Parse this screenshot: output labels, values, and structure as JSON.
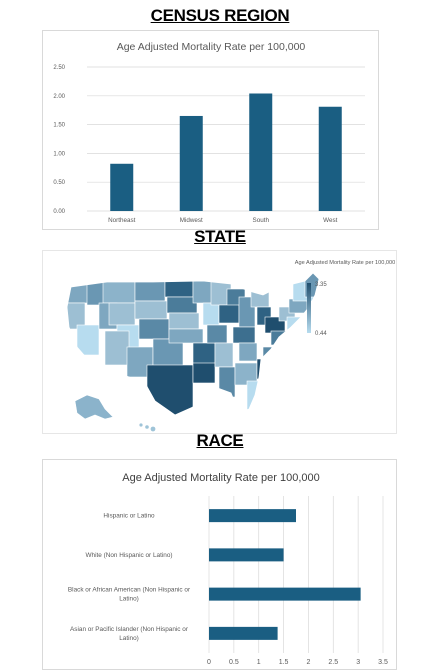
{
  "sections": {
    "census": "CENSUS REGION",
    "state": "STATE",
    "race": "RACE"
  },
  "colors": {
    "bar": "#1a5e82",
    "grid": "#d9d9d9",
    "axis_text": "#595959",
    "map_dark": "#1f4e6e",
    "map_light": "#b7dcef"
  },
  "chart_data": [
    {
      "type": "bar",
      "title": "Age Adjusted Mortality Rate per 100,000",
      "categories": [
        "Northeast",
        "Midwest",
        "South",
        "West"
      ],
      "values": [
        0.82,
        1.65,
        2.04,
        1.81
      ],
      "ylim": [
        0,
        2.5
      ],
      "yticks": [
        "0.00",
        "0.50",
        "1.00",
        "1.50",
        "2.00",
        "2.50"
      ],
      "grid": true
    },
    {
      "type": "heatmap",
      "legend_title": "Age Adjusted Mortality Rate per 100,000",
      "legend_max": "3.35",
      "legend_min": "0.44",
      "legend_placement": "top-right"
    },
    {
      "type": "bar",
      "orientation": "horizontal",
      "title": "Age Adjusted Mortality Rate per 100,000",
      "categories": [
        [
          "Hispanic or Latino"
        ],
        [
          "White (Non Hispanic or Latino)"
        ],
        [
          "Black or African American (Non Hispanic or",
          "Latino)"
        ],
        [
          "Asian or Pacific Islander (Non Hispanic or",
          "Latino)"
        ]
      ],
      "values": [
        1.75,
        1.5,
        3.05,
        1.38
      ],
      "xlim": [
        0,
        3.5
      ],
      "xticks": [
        "0",
        "0.5",
        "1",
        "1.5",
        "2",
        "2.5",
        "3",
        "3.5"
      ],
      "grid": true
    }
  ]
}
